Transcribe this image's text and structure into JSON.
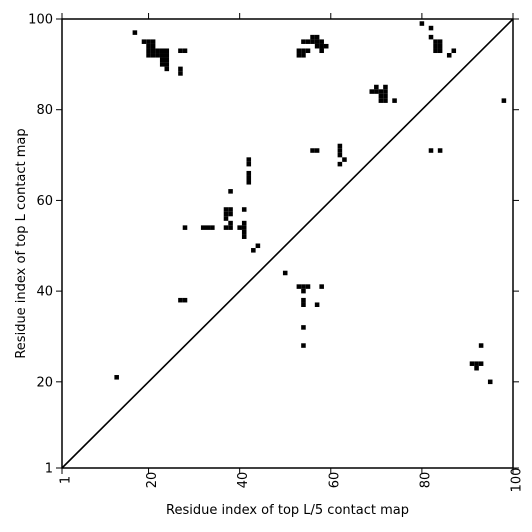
{
  "chart_data": {
    "type": "heatmap",
    "xlabel": "Residue index of top L/5 contact map",
    "ylabel": "Residue index of top L contact map",
    "xlim": [
      1,
      100
    ],
    "ylim": [
      1,
      100
    ],
    "x_ticks": [
      1,
      20,
      40,
      60,
      80,
      100
    ],
    "y_ticks": [
      1,
      20,
      40,
      60,
      80,
      100
    ],
    "grid": false,
    "diagonal": {
      "from": [
        1,
        1
      ],
      "to": [
        100,
        100
      ]
    },
    "cells_upper_top_L": [
      [
        17,
        97
      ],
      [
        19,
        95
      ],
      [
        20,
        95
      ],
      [
        21,
        95
      ],
      [
        20,
        94
      ],
      [
        21,
        94
      ],
      [
        20,
        93
      ],
      [
        21,
        93
      ],
      [
        22,
        93
      ],
      [
        23,
        93
      ],
      [
        24,
        93
      ],
      [
        20,
        92
      ],
      [
        21,
        92
      ],
      [
        22,
        92
      ],
      [
        23,
        92
      ],
      [
        24,
        92
      ],
      [
        23,
        91
      ],
      [
        24,
        91
      ],
      [
        23,
        90
      ],
      [
        24,
        90
      ],
      [
        24,
        89
      ],
      [
        27,
        93
      ],
      [
        28,
        93
      ],
      [
        27,
        89
      ],
      [
        27,
        88
      ],
      [
        53,
        93
      ],
      [
        54,
        93
      ],
      [
        55,
        93
      ],
      [
        53,
        92
      ],
      [
        54,
        92
      ],
      [
        54,
        95
      ],
      [
        55,
        95
      ],
      [
        56,
        96
      ],
      [
        57,
        96
      ],
      [
        56,
        95
      ],
      [
        57,
        95
      ],
      [
        57,
        94
      ],
      [
        58,
        94
      ],
      [
        59,
        94
      ],
      [
        58,
        93
      ],
      [
        58,
        95
      ],
      [
        56,
        71
      ],
      [
        57,
        71
      ],
      [
        69,
        84
      ],
      [
        70,
        84
      ],
      [
        71,
        84
      ],
      [
        72,
        84
      ],
      [
        70,
        85
      ],
      [
        72,
        85
      ],
      [
        71,
        83
      ],
      [
        72,
        83
      ],
      [
        71,
        82
      ],
      [
        72,
        82
      ],
      [
        74,
        82
      ],
      [
        80,
        99
      ],
      [
        82,
        98
      ],
      [
        82,
        96
      ],
      [
        83,
        95
      ],
      [
        84,
        95
      ],
      [
        83,
        94
      ],
      [
        84,
        94
      ],
      [
        83,
        93
      ],
      [
        84,
        93
      ],
      [
        86,
        92
      ],
      [
        87,
        93
      ],
      [
        98,
        82
      ]
    ],
    "cells_lower_top_L5": [
      [
        13,
        21
      ],
      [
        28,
        54
      ],
      [
        27,
        38
      ],
      [
        28,
        38
      ],
      [
        32,
        54
      ],
      [
        33,
        54
      ],
      [
        34,
        54
      ],
      [
        37,
        58
      ],
      [
        38,
        58
      ],
      [
        37,
        57
      ],
      [
        38,
        57
      ],
      [
        37,
        56
      ],
      [
        38,
        55
      ],
      [
        37,
        54
      ],
      [
        38,
        54
      ],
      [
        38,
        62
      ],
      [
        40,
        54
      ],
      [
        41,
        55
      ],
      [
        41,
        54
      ],
      [
        41,
        53
      ],
      [
        41,
        52
      ],
      [
        41,
        58
      ],
      [
        42,
        69
      ],
      [
        42,
        68
      ],
      [
        42,
        66
      ],
      [
        42,
        65
      ],
      [
        42,
        64
      ],
      [
        43,
        49
      ],
      [
        44,
        50
      ],
      [
        50,
        44
      ],
      [
        53,
        41
      ],
      [
        54,
        41
      ],
      [
        55,
        41
      ],
      [
        54,
        40
      ],
      [
        54,
        38
      ],
      [
        54,
        37
      ],
      [
        54,
        32
      ],
      [
        54,
        28
      ],
      [
        57,
        37
      ],
      [
        58,
        41
      ],
      [
        62,
        72
      ],
      [
        62,
        71
      ],
      [
        62,
        70
      ],
      [
        62,
        68
      ],
      [
        63,
        69
      ],
      [
        82,
        71
      ],
      [
        84,
        71
      ],
      [
        91,
        24
      ],
      [
        92,
        24
      ],
      [
        93,
        24
      ],
      [
        92,
        23
      ],
      [
        93,
        28
      ],
      [
        95,
        20
      ]
    ]
  }
}
